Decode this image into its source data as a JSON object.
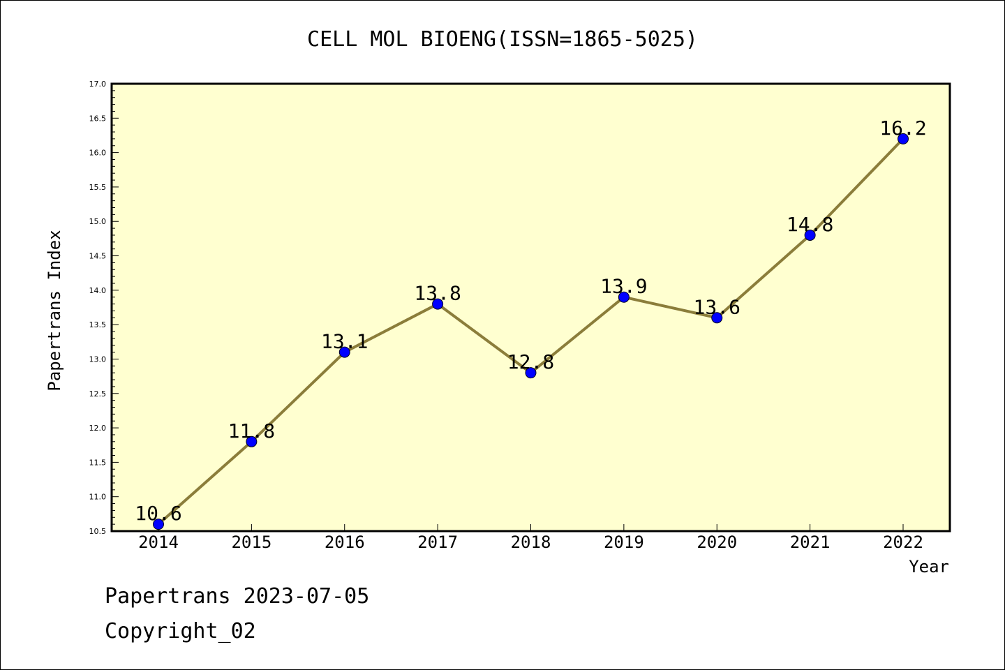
{
  "chart_data": {
    "type": "line",
    "title": "CELL MOL BIOENG(ISSN=1865-5025)",
    "xlabel": "Year",
    "ylabel": "Papertrans Index",
    "x": [
      "2014",
      "2015",
      "2016",
      "2017",
      "2018",
      "2019",
      "2020",
      "2021",
      "2022"
    ],
    "values": [
      10.6,
      11.8,
      13.1,
      13.8,
      12.8,
      13.9,
      13.6,
      14.8,
      16.2
    ],
    "data_labels": [
      "10.6",
      "11.8",
      "13.1",
      "13.8",
      "12.8",
      "13.9",
      "13.6",
      "14.8",
      "16.2"
    ],
    "ylim": [
      10.5,
      17.0
    ],
    "y_ticks": [
      "10.5",
      "11.0",
      "11.5",
      "12.0",
      "12.5",
      "13.0",
      "13.5",
      "14.0",
      "14.5",
      "15.0",
      "15.5",
      "16.0",
      "16.5",
      "17.0"
    ],
    "grid": false,
    "colors": {
      "plot_background": "#ffffd0",
      "line": "#8b7d3a",
      "marker": "#0000ff",
      "axis": "#000000"
    }
  },
  "footer": {
    "line1": "Papertrans 2023-07-05",
    "line2": "Copyright_02"
  }
}
